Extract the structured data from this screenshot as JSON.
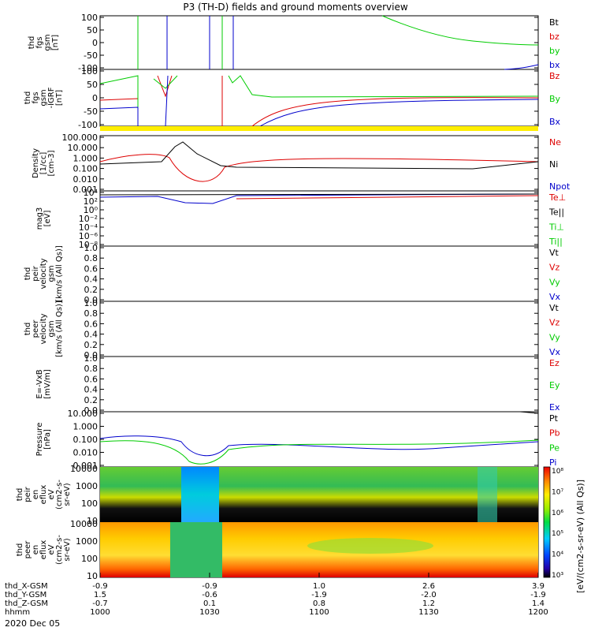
{
  "title": "P3 (TH-D) fields and ground moments overview",
  "colors": {
    "black": "#000000",
    "red": "#dd0000",
    "green": "#00cc00",
    "blue": "#0000cc",
    "yellow": "#ffee00"
  },
  "chart_data": {
    "type": "line",
    "panels": [
      {
        "ylabel": [
          "thd",
          "fgs",
          "gsm",
          "[nT]"
        ],
        "ylim": [
          -100,
          100
        ],
        "ticks": [
          "100",
          "50",
          "0",
          "-50",
          "-100"
        ],
        "legend": [
          {
            "label": "Bt",
            "color": "#000000"
          },
          {
            "label": "bz",
            "color": "#dd0000"
          },
          {
            "label": "by",
            "color": "#00cc00"
          },
          {
            "label": "bx",
            "color": "#0000cc"
          }
        ]
      },
      {
        "ylabel": [
          "thd",
          "fgs",
          "gsm",
          "-IGRF",
          "[nT]"
        ],
        "ylim": [
          -120,
          40
        ],
        "ticks": [
          "100",
          "50",
          "0",
          "-50",
          "-100"
        ],
        "legend": [
          {
            "label": "Bz",
            "color": "#dd0000"
          },
          {
            "label": "By",
            "color": "#00cc00"
          },
          {
            "label": "Bx",
            "color": "#0000cc"
          }
        ]
      },
      {
        "ylabel": [
          "Density",
          "[1/cc]",
          "[cm-3]"
        ],
        "scale": "log",
        "ticks": [
          "100.000",
          "10.000",
          "1.000",
          "0.100",
          "0.010",
          "0.001"
        ],
        "legend": [
          {
            "label": "Ne",
            "color": "#dd0000"
          },
          {
            "label": "Ni",
            "color": "#000000"
          },
          {
            "label": "Npot",
            "color": "#0000cc"
          }
        ]
      },
      {
        "ylabel": [
          "mag3",
          "[eV]"
        ],
        "scale": "log",
        "ticks": [
          "10⁴",
          "10²",
          "10⁰",
          "10⁻²",
          "10⁻⁴",
          "10⁻⁶",
          "10⁻⁸"
        ],
        "legend": [
          {
            "label": "Te⊥",
            "color": "#dd0000"
          },
          {
            "label": "Te||",
            "color": "#000000"
          },
          {
            "label": "Ti⊥",
            "color": "#00cc00"
          },
          {
            "label": "Ti||",
            "color": "#00cc00"
          }
        ]
      },
      {
        "ylabel": [
          "thd",
          "peir",
          "velocity",
          "gsm",
          "[km/s (All Qs)]"
        ],
        "ylim": [
          0,
          1
        ],
        "ticks": [
          "1.0",
          "0.8",
          "0.6",
          "0.4",
          "0.2",
          "0.0"
        ],
        "legend": [
          {
            "label": "Vt",
            "color": "#000000"
          },
          {
            "label": "Vz",
            "color": "#dd0000"
          },
          {
            "label": "Vy",
            "color": "#00cc00"
          },
          {
            "label": "Vx",
            "color": "#0000cc"
          }
        ]
      },
      {
        "ylabel": [
          "thd",
          "peer",
          "velocity",
          "gsm",
          "[km/s (All Qs)]"
        ],
        "ylim": [
          0,
          1
        ],
        "ticks": [
          "1.0",
          "0.8",
          "0.6",
          "0.4",
          "0.2",
          "0.0"
        ],
        "legend": [
          {
            "label": "Vt",
            "color": "#000000"
          },
          {
            "label": "Vz",
            "color": "#dd0000"
          },
          {
            "label": "Vy",
            "color": "#00cc00"
          },
          {
            "label": "Vx",
            "color": "#0000cc"
          }
        ]
      },
      {
        "ylabel": [
          "E=-VxB",
          "[mV/m]"
        ],
        "ylim": [
          0,
          1
        ],
        "ticks": [
          "1.0",
          "0.8",
          "0.6",
          "0.4",
          "0.2",
          "0.0"
        ],
        "legend": [
          {
            "label": "Ez",
            "color": "#dd0000"
          },
          {
            "label": "Ey",
            "color": "#00cc00"
          },
          {
            "label": "Ex",
            "color": "#0000cc"
          }
        ]
      },
      {
        "ylabel": [
          "Pressure",
          "[nPa]"
        ],
        "scale": "log",
        "ticks": [
          "10.000",
          "1.000",
          "0.100",
          "0.010",
          "0.001"
        ],
        "legend": [
          {
            "label": "Pt",
            "color": "#000000"
          },
          {
            "label": "Pb",
            "color": "#dd0000"
          },
          {
            "label": "Pe",
            "color": "#00cc00"
          },
          {
            "label": "Pi",
            "color": "#0000cc"
          }
        ]
      },
      {
        "ylabel": [
          "thd",
          "peir",
          "en",
          "eflux",
          "eV",
          "(cm2-s-",
          "sr-eV)"
        ],
        "type": "spectrogram",
        "ticks": [
          "10000",
          "1000",
          "100",
          "10"
        ]
      },
      {
        "ylabel": [
          "thd",
          "peer",
          "en",
          "eflux",
          "eV",
          "(cm2-s-",
          "sr-eV)"
        ],
        "type": "spectrogram",
        "ticks": [
          "10000",
          "1000",
          "100",
          "10"
        ]
      }
    ],
    "colorbar": {
      "label": "[eV/(cm2-s-sr-eV) (All Qs)]",
      "ticks": [
        "10⁸",
        "10⁷",
        "10⁶",
        "10⁵",
        "10⁴",
        "10³"
      ]
    },
    "xaxis": {
      "rows": [
        {
          "label": "thd_X-GSM",
          "values": [
            "-0.9",
            "-0.9",
            "1.0",
            "2.6",
            "3.9"
          ]
        },
        {
          "label": "thd_Y-GSM",
          "values": [
            "1.5",
            "-0.6",
            "-1.9",
            "-2.0",
            "-1.9"
          ]
        },
        {
          "label": "thd_Z-GSM",
          "values": [
            "-0.7",
            "0.1",
            "0.8",
            "1.2",
            "1.4"
          ]
        },
        {
          "label": "hhmm",
          "values": [
            "1000",
            "1030",
            "1100",
            "1130",
            "1200"
          ]
        }
      ],
      "date": "2020 Dec 05"
    }
  }
}
